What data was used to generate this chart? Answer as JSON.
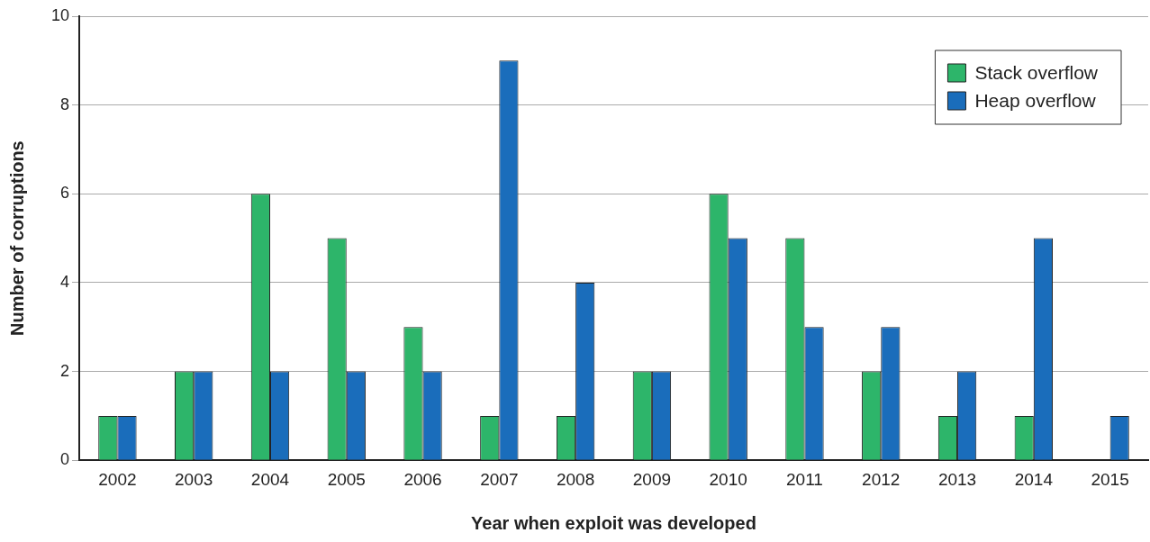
{
  "chart_data": {
    "type": "bar",
    "xlabel": "Year when exploit was developed",
    "ylabel": "Number of corruptions",
    "categories": [
      "2002",
      "2003",
      "2004",
      "2005",
      "2006",
      "2007",
      "2008",
      "2009",
      "2010",
      "2011",
      "2012",
      "2013",
      "2014",
      "2015"
    ],
    "series": [
      {
        "name": "Stack overflow",
        "color": "#2db56a",
        "values": [
          1,
          2,
          6,
          5,
          3,
          1,
          1,
          2,
          6,
          5,
          2,
          1,
          1,
          null
        ]
      },
      {
        "name": "Heap overflow",
        "color": "#1a6dbb",
        "values": [
          1,
          2,
          2,
          2,
          2,
          9,
          4,
          2,
          5,
          3,
          3,
          2,
          5,
          1
        ]
      }
    ],
    "ylim": [
      0,
      10
    ],
    "yticks": [
      0,
      2,
      4,
      6,
      8,
      10
    ],
    "grid": "y",
    "legend": "top right"
  }
}
